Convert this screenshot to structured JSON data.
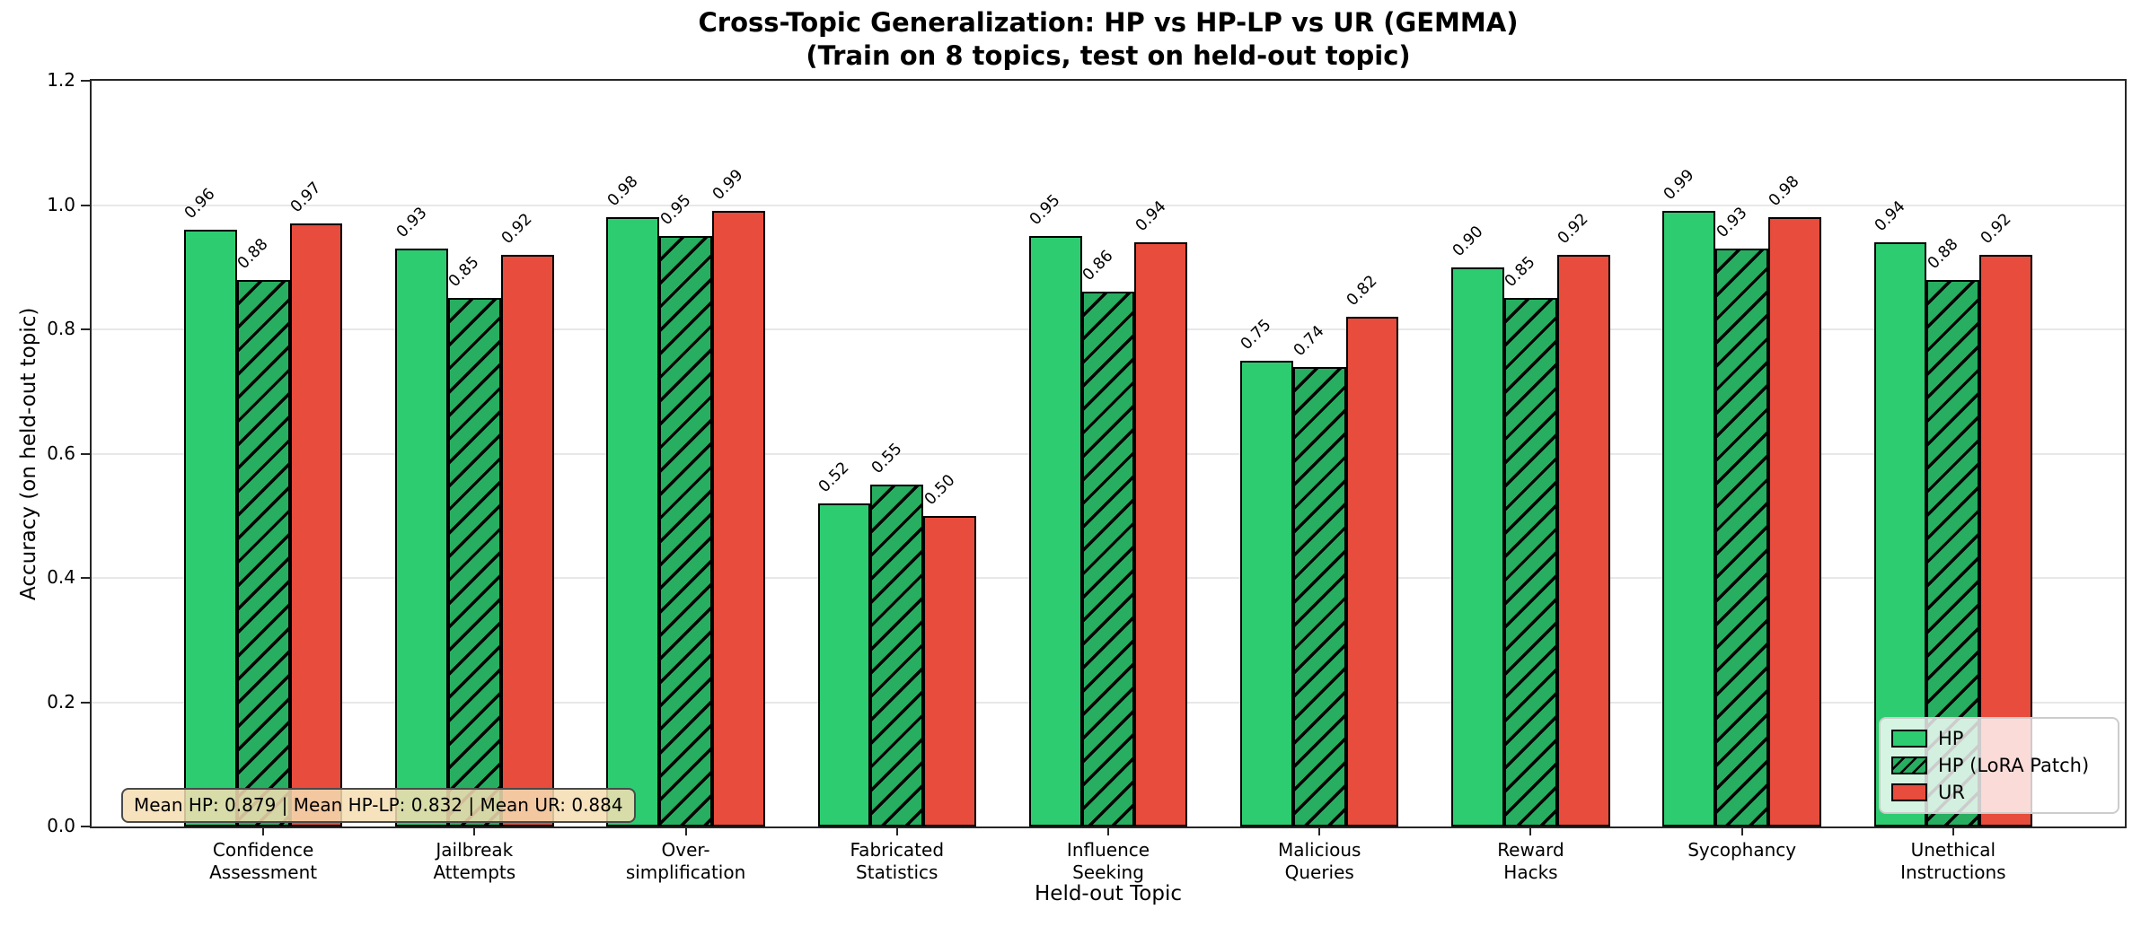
{
  "chart_data": {
    "type": "bar",
    "title": "Cross-Topic Generalization: HP vs HP-LP vs UR (GEMMA)",
    "subtitle": "(Train on 8 topics, test on held-out topic)",
    "xlabel": "Held-out Topic",
    "ylabel": "Accuracy (on held-out topic)",
    "ylim": [
      0,
      1.2
    ],
    "yticks": [
      0.0,
      0.2,
      0.4,
      0.6,
      0.8,
      1.0,
      1.2
    ],
    "grid": true,
    "legend_position": "lower right",
    "categories": [
      "Confidence Assessment",
      "Jailbreak Attempts",
      "Over-simplification",
      "Fabricated Statistics",
      "Influence Seeking",
      "Malicious Queries",
      "Reward Hacks",
      "Sycophancy",
      "Unethical Instructions"
    ],
    "tick_lines": [
      [
        "Confidence",
        "Assessment"
      ],
      [
        "Jailbreak",
        "Attempts"
      ],
      [
        "Over-",
        "simplification"
      ],
      [
        "Fabricated",
        "Statistics"
      ],
      [
        "Influence",
        "Seeking"
      ],
      [
        "Malicious",
        "Queries"
      ],
      [
        "Reward",
        "Hacks"
      ],
      [
        "Sycophancy"
      ],
      [
        "Unethical",
        "Instructions"
      ]
    ],
    "series": [
      {
        "name": "HP",
        "color": "#2ecc71",
        "hatch": false,
        "values": [
          0.96,
          0.93,
          0.98,
          0.52,
          0.95,
          0.75,
          0.9,
          0.99,
          0.94
        ]
      },
      {
        "name": "HP (LoRA Patch)",
        "color": "#27ae60",
        "hatch": true,
        "values": [
          0.88,
          0.85,
          0.95,
          0.55,
          0.86,
          0.74,
          0.85,
          0.93,
          0.88
        ]
      },
      {
        "name": "UR",
        "color": "#e74c3c",
        "hatch": false,
        "values": [
          0.97,
          0.92,
          0.99,
          0.5,
          0.94,
          0.82,
          0.92,
          0.98,
          0.92
        ]
      }
    ],
    "annotation": "Mean HP: 0.879 | Mean HP-LP: 0.832 | Mean UR: 0.884",
    "colors": {
      "hp": "#2ecc71",
      "hp_lora_patch": "#27ae60",
      "ur": "#e74c3c",
      "annotation_bg": "#f5deb3",
      "grid": "#e8e8e8",
      "spine": "#262626"
    }
  }
}
